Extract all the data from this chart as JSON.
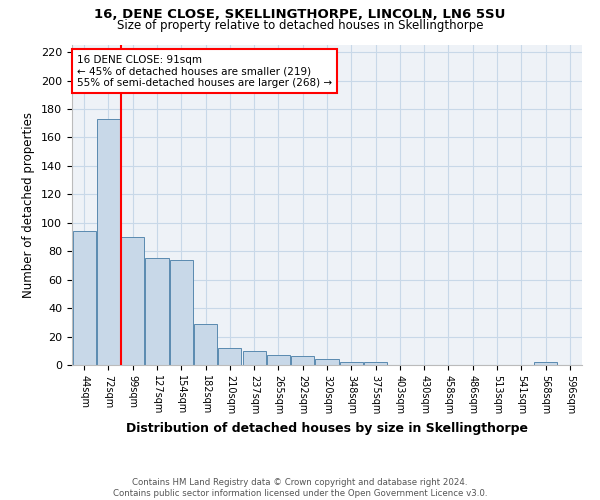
{
  "title1": "16, DENE CLOSE, SKELLINGTHORPE, LINCOLN, LN6 5SU",
  "title2": "Size of property relative to detached houses in Skellingthorpe",
  "xlabel": "Distribution of detached houses by size in Skellingthorpe",
  "ylabel": "Number of detached properties",
  "footnote": "Contains HM Land Registry data © Crown copyright and database right 2024.\nContains public sector information licensed under the Open Government Licence v3.0.",
  "annotation_title": "16 DENE CLOSE: 91sqm",
  "annotation_line2": "← 45% of detached houses are smaller (219)",
  "annotation_line3": "55% of semi-detached houses are larger (268) →",
  "bar_labels": [
    "44sqm",
    "72sqm",
    "99sqm",
    "127sqm",
    "154sqm",
    "182sqm",
    "210sqm",
    "237sqm",
    "265sqm",
    "292sqm",
    "320sqm",
    "348sqm",
    "375sqm",
    "403sqm",
    "430sqm",
    "458sqm",
    "486sqm",
    "513sqm",
    "541sqm",
    "568sqm",
    "596sqm"
  ],
  "bar_values": [
    94,
    173,
    90,
    75,
    74,
    29,
    12,
    10,
    7,
    6,
    4,
    2,
    2,
    0,
    0,
    0,
    0,
    0,
    0,
    2,
    0
  ],
  "bar_color": "#c8d8e8",
  "bar_edge_color": "#5a8ab0",
  "grid_color": "#c8d8e8",
  "bg_color": "#eef2f7",
  "vline_x": 1.5,
  "vline_color": "red",
  "annotation_box_color": "white",
  "annotation_box_edge": "red",
  "ylim": [
    0,
    225
  ],
  "yticks": [
    0,
    20,
    40,
    60,
    80,
    100,
    120,
    140,
    160,
    180,
    200,
    220
  ]
}
